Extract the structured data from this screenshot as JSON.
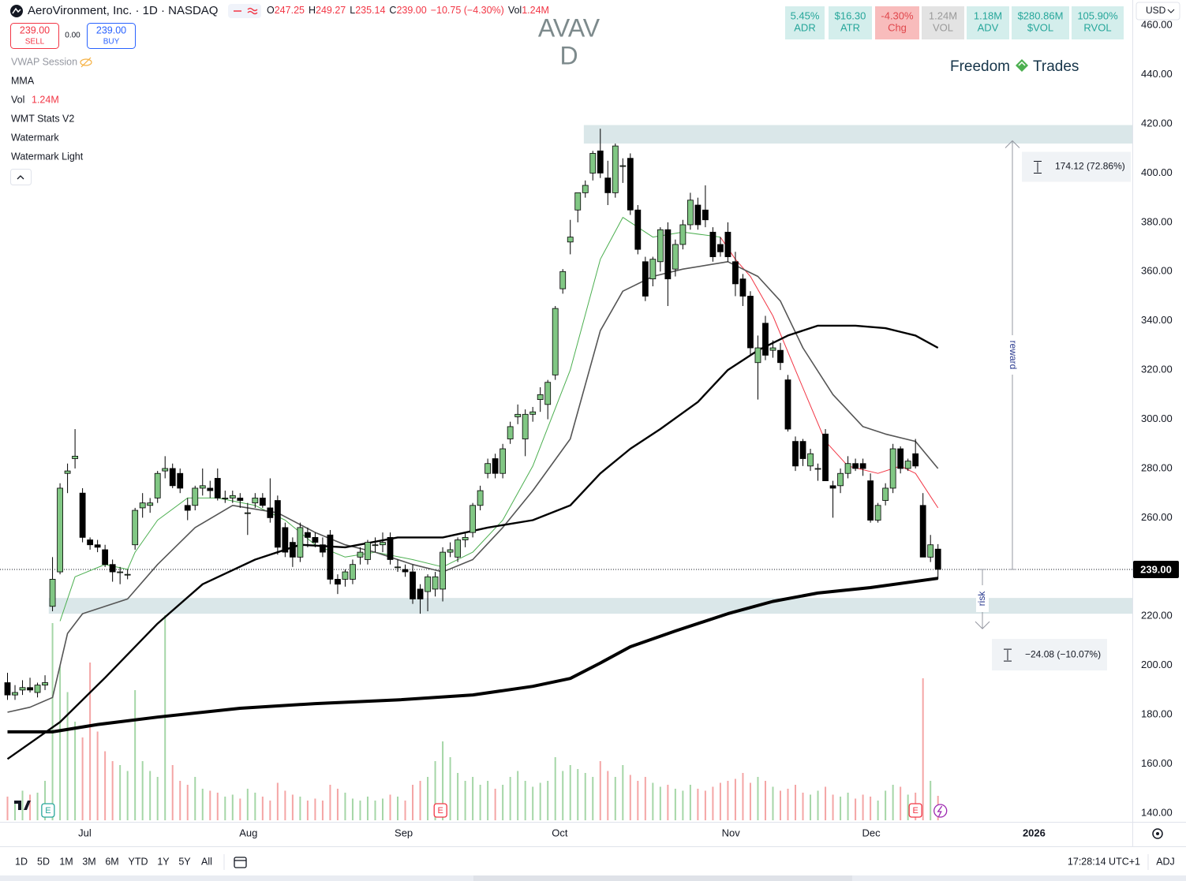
{
  "header": {
    "symbol": "AeroVironment, Inc. · 1D · NASDAQ",
    "ohlc": [
      {
        "key": "O",
        "value": "247.25"
      },
      {
        "key": "H",
        "value": "249.27"
      },
      {
        "key": "L",
        "value": "235.14"
      },
      {
        "key": "C",
        "value": "239.00"
      },
      {
        "key": "",
        "value": "−10.75 (−4.30%)"
      },
      {
        "key": "Vol",
        "value": "1.24M"
      }
    ],
    "sell_price": "239.00",
    "sell": "SELL",
    "spread": "0.00",
    "buy_price": "239.00",
    "buy": "BUY"
  },
  "indicators": [
    "VWAP Session",
    "MMA",
    "Vol",
    "WMT Stats V2",
    "Watermark",
    "Watermark Light"
  ],
  "vol_value": "1.24M",
  "stats": [
    {
      "value": "5.45%",
      "label": "ADR",
      "bg": "#d4eeec",
      "fg": "#26a69a"
    },
    {
      "value": "$16.30",
      "label": "ATR",
      "bg": "#d4eeec",
      "fg": "#26a69a"
    },
    {
      "value": "-4.30%",
      "label": "Chg",
      "bg": "#f8bcbc",
      "fg": "#e0474c"
    },
    {
      "value": "1.24M",
      "label": "VOL",
      "bg": "#e3e3e3",
      "fg": "#9a9a9a"
    },
    {
      "value": "1.18M",
      "label": "ADV",
      "bg": "#d4eeec",
      "fg": "#26a69a"
    },
    {
      "value": "$280.86M",
      "label": "$VOL",
      "bg": "#d4eeec",
      "fg": "#26a69a"
    },
    {
      "value": "105.90%",
      "label": "RVOL",
      "bg": "#d4eeec",
      "fg": "#26a69a"
    }
  ],
  "watermark": {
    "symbol": "AVAV",
    "interval": "D",
    "brand_left": "Freedom",
    "brand_right": "Trades"
  },
  "currency": "USD",
  "toolbar": {
    "ranges": [
      "1D",
      "5D",
      "1M",
      "3M",
      "6M",
      "YTD",
      "1Y",
      "5Y",
      "All"
    ],
    "time": "17:28:14 UTC+1",
    "adj": "ADJ"
  },
  "chart_data": {
    "type": "candlestick",
    "up_color": "#81c784",
    "down_color": "#000000",
    "vol_up_color": "#a5d6a7",
    "vol_down_color": "#f4a5a5",
    "zone_color": "#dae7e9",
    "ylim": [
      137.1,
      468.7
    ],
    "yticks": [
      {
        "value": 140,
        "label": "140.00"
      },
      {
        "value": 160,
        "label": "160.00"
      },
      {
        "value": 180,
        "label": "180.00"
      },
      {
        "value": 200,
        "label": "200.00"
      },
      {
        "value": 220,
        "label": "220.00"
      },
      {
        "value": 240,
        "label": "240.00"
      },
      {
        "value": 260,
        "label": "260.00"
      },
      {
        "value": 280,
        "label": "280.00"
      },
      {
        "value": 300,
        "label": "300.00"
      },
      {
        "value": 320,
        "label": "320.00"
      },
      {
        "value": 340,
        "label": "340.00"
      },
      {
        "value": 360,
        "label": "360.00"
      },
      {
        "value": 380,
        "label": "380.00"
      },
      {
        "value": 400,
        "label": "400.00"
      },
      {
        "value": 420,
        "label": "420.00"
      },
      {
        "value": 440,
        "label": "440.00"
      },
      {
        "value": 460,
        "label": "460.00"
      }
    ],
    "xlim": [
      -1,
      149.9
    ],
    "xticks": [
      {
        "value": 10.3,
        "label": "Jul"
      },
      {
        "value": 32.1,
        "label": "Aug"
      },
      {
        "value": 52.8,
        "label": "Sep"
      },
      {
        "value": 73.6,
        "label": "Oct"
      },
      {
        "value": 96.4,
        "label": "Nov"
      },
      {
        "value": 115.1,
        "label": "Dec"
      },
      {
        "value": 136.8,
        "label": "2026"
      }
    ],
    "grid": false,
    "ohlc": [
      [
        193,
        197,
        186,
        188
      ],
      [
        188,
        192,
        186,
        189
      ],
      [
        190,
        194,
        188,
        191
      ],
      [
        191,
        195,
        189,
        190
      ],
      [
        189,
        193,
        187,
        192
      ],
      [
        192,
        196,
        190,
        193
      ],
      [
        224,
        244,
        222,
        235
      ],
      [
        238,
        274,
        237,
        272
      ],
      [
        278,
        282,
        270,
        279
      ],
      [
        284,
        296,
        280,
        285
      ],
      [
        270,
        272,
        250,
        252
      ],
      [
        251,
        252,
        247,
        249
      ],
      [
        249,
        251,
        246,
        248
      ],
      [
        247,
        249,
        240,
        241
      ],
      [
        241,
        243,
        234,
        238
      ],
      [
        238,
        240,
        233,
        238
      ],
      [
        237,
        239,
        235,
        237
      ],
      [
        249,
        264,
        247,
        263
      ],
      [
        264,
        270,
        260,
        266
      ],
      [
        265,
        268,
        262,
        266
      ],
      [
        268,
        279,
        266,
        278
      ],
      [
        279,
        285,
        276,
        280
      ],
      [
        280,
        282,
        272,
        273
      ],
      [
        278,
        280,
        270,
        272
      ],
      [
        265,
        268,
        259,
        263
      ],
      [
        265,
        273,
        263,
        272
      ],
      [
        272,
        280,
        269,
        273
      ],
      [
        272,
        275,
        268,
        271
      ],
      [
        276,
        280,
        267,
        268
      ],
      [
        268,
        271,
        266,
        268
      ],
      [
        268,
        271,
        266,
        269
      ],
      [
        268,
        270,
        264,
        267
      ],
      [
        262,
        266,
        253,
        262
      ],
      [
        266,
        270,
        264,
        268
      ],
      [
        268,
        270,
        264,
        265
      ],
      [
        264,
        276,
        258,
        260
      ],
      [
        267,
        269,
        245,
        248
      ],
      [
        256,
        258,
        244,
        246
      ],
      [
        250,
        252,
        240,
        244
      ],
      [
        244,
        258,
        242,
        256
      ],
      [
        254,
        256,
        248,
        252
      ],
      [
        252,
        254,
        248,
        250
      ],
      [
        249,
        252,
        244,
        246
      ],
      [
        253,
        255,
        233,
        235
      ],
      [
        235,
        237,
        229,
        233
      ],
      [
        235,
        239,
        232,
        238
      ],
      [
        235,
        243,
        233,
        241
      ],
      [
        244,
        248,
        241,
        246
      ],
      [
        243,
        251,
        241,
        250
      ],
      [
        249,
        252,
        246,
        249
      ],
      [
        249,
        254,
        246,
        250
      ],
      [
        252,
        254,
        241,
        243
      ],
      [
        240,
        243,
        238,
        240
      ],
      [
        239,
        241,
        236,
        238
      ],
      [
        238,
        241,
        225,
        227
      ],
      [
        231,
        233,
        221,
        227
      ],
      [
        230,
        237,
        222,
        236
      ],
      [
        231,
        238,
        228,
        236
      ],
      [
        231,
        248,
        226,
        246
      ],
      [
        246,
        250,
        244,
        247
      ],
      [
        244,
        252,
        242,
        251
      ],
      [
        251,
        254,
        248,
        252
      ],
      [
        254,
        266,
        252,
        265
      ],
      [
        265,
        273,
        263,
        271
      ],
      [
        278,
        284,
        276,
        282
      ],
      [
        284,
        286,
        276,
        278
      ],
      [
        278,
        290,
        276,
        288
      ],
      [
        292,
        299,
        290,
        297
      ],
      [
        301,
        306,
        298,
        302
      ],
      [
        292,
        304,
        285,
        302
      ],
      [
        302,
        305,
        299,
        303
      ],
      [
        308,
        313,
        303,
        310
      ],
      [
        306,
        316,
        300,
        315
      ],
      [
        318,
        346,
        316,
        345
      ],
      [
        353,
        361,
        351,
        360
      ],
      [
        372,
        381,
        367,
        374
      ],
      [
        385,
        392,
        380,
        392
      ],
      [
        392,
        397,
        390,
        395
      ],
      [
        400,
        409,
        397,
        408
      ],
      [
        409,
        418,
        398,
        400
      ],
      [
        398,
        405,
        387,
        392
      ],
      [
        392,
        412,
        390,
        411
      ],
      [
        403,
        406,
        396,
        403
      ],
      [
        406,
        408,
        383,
        385
      ],
      [
        385,
        387,
        367,
        369
      ],
      [
        364,
        366,
        348,
        350
      ],
      [
        357,
        366,
        354,
        365
      ],
      [
        364,
        378,
        360,
        377
      ],
      [
        377,
        380,
        346,
        357
      ],
      [
        361,
        373,
        358,
        371
      ],
      [
        371,
        381,
        369,
        379
      ],
      [
        379,
        392,
        377,
        389
      ],
      [
        387,
        390,
        377,
        379
      ],
      [
        385,
        395,
        378,
        381
      ],
      [
        376,
        378,
        364,
        366
      ],
      [
        371,
        374,
        366,
        368
      ],
      [
        376,
        380,
        364,
        366
      ],
      [
        364,
        368,
        350,
        355
      ],
      [
        357,
        359,
        346,
        350
      ],
      [
        350,
        352,
        326,
        329
      ],
      [
        323,
        334,
        308,
        329
      ],
      [
        339,
        342,
        324,
        326
      ],
      [
        328,
        332,
        325,
        329
      ],
      [
        328,
        331,
        320,
        323
      ],
      [
        316,
        318,
        295,
        296
      ],
      [
        291,
        293,
        279,
        281
      ],
      [
        291,
        292,
        281,
        284
      ],
      [
        281,
        288,
        279,
        286
      ],
      [
        280,
        282,
        275,
        280
      ],
      [
        294,
        296,
        275,
        275
      ],
      [
        273,
        275,
        260,
        272
      ],
      [
        273,
        280,
        270,
        278
      ],
      [
        278,
        285,
        276,
        282
      ],
      [
        282,
        284,
        279,
        280
      ],
      [
        282,
        284,
        277,
        280
      ],
      [
        275,
        278,
        258,
        259
      ],
      [
        259,
        266,
        258,
        265
      ],
      [
        267,
        274,
        265,
        272
      ],
      [
        272,
        290,
        270,
        288
      ],
      [
        288,
        289,
        278,
        280
      ],
      [
        280,
        284,
        279,
        283
      ],
      [
        286,
        292,
        280,
        281
      ],
      [
        265,
        270,
        244,
        244
      ],
      [
        244,
        253,
        242,
        249
      ],
      [
        247.25,
        249.27,
        235.14,
        239
      ]
    ],
    "vol_ylim": [
      0,
      11
    ],
    "volume": [
      1.2,
      1.0,
      1.5,
      1.3,
      1.4,
      2.0,
      10.0,
      7.8,
      6.5,
      5.0,
      4.2,
      8.0,
      4.5,
      3.5,
      3.0,
      2.8,
      2.5,
      6.6,
      3.0,
      2.5,
      2.2,
      10.4,
      2.8,
      2.0,
      1.8,
      2.2,
      1.6,
      1.5,
      1.4,
      1.2,
      1.3,
      1.1,
      1.6,
      1.4,
      1.2,
      1.0,
      1.9,
      1.5,
      1.3,
      1.2,
      1.0,
      1.1,
      1.0,
      1.8,
      1.6,
      1.4,
      1.1,
      1.0,
      1.2,
      1.0,
      1.1,
      1.3,
      1.2,
      1.0,
      1.8,
      2.0,
      2.2,
      3.0,
      4.0,
      3.2,
      2.4,
      2.0,
      2.2,
      1.8,
      2.0,
      1.6,
      1.8,
      2.2,
      2.5,
      2.0,
      1.7,
      1.9,
      2.0,
      3.2,
      2.5,
      2.8,
      2.6,
      2.4,
      2.2,
      3.0,
      2.5,
      2.2,
      2.8,
      2.3,
      2.0,
      2.2,
      1.9,
      1.7,
      1.8,
      1.6,
      1.5,
      1.8,
      1.6,
      1.5,
      1.7,
      1.9,
      2.0,
      2.1,
      2.4,
      1.9,
      2.2,
      2.0,
      1.7,
      1.5,
      1.6,
      1.8,
      1.4,
      1.3,
      1.5,
      1.7,
      1.3,
      1.2,
      1.4,
      1.1,
      1.3,
      1.2,
      1.0,
      1.5,
      1.8,
      1.7,
      1.3,
      1.4,
      7.2,
      2.0,
      1.24
    ],
    "lines": [
      {
        "color": "#4caf50",
        "width": 1,
        "x": [
          7,
          9,
          13,
          16,
          17,
          20,
          24,
          28,
          33,
          37,
          41,
          45,
          49,
          54,
          58,
          62,
          66,
          70,
          75,
          79,
          82,
          86,
          90,
          95
        ],
        "values": [
          218,
          236,
          241,
          239,
          246,
          259,
          268,
          268,
          265,
          259,
          249,
          244,
          246,
          243,
          240,
          246,
          259,
          281,
          320,
          365,
          382,
          374,
          376,
          374
        ]
      },
      {
        "color": "#f23645",
        "width": 1,
        "x": [
          95,
          97,
          99,
          102,
          105,
          109,
          112,
          116,
          119,
          121,
          124
        ],
        "values": [
          374,
          365,
          358,
          342,
          320,
          291,
          281,
          278,
          281,
          278,
          264
        ]
      },
      {
        "color": "#555555",
        "width": 1.6,
        "x": [
          0,
          3,
          6,
          7,
          8,
          10,
          13,
          16,
          20,
          25,
          30,
          36,
          41,
          45,
          49,
          54,
          58,
          62,
          66,
          70,
          75,
          79,
          82,
          86,
          90,
          96,
          100,
          103,
          106,
          110,
          114,
          117,
          121,
          124
        ],
        "values": [
          181,
          183,
          187,
          200,
          213,
          221,
          224,
          227,
          241,
          256,
          265,
          262,
          254,
          249,
          246,
          241,
          238,
          243,
          256,
          271,
          292,
          336,
          352,
          358,
          361,
          364,
          358,
          348,
          329,
          310,
          297,
          294,
          291,
          280
        ]
      },
      {
        "color": "#000000",
        "width": 2.4,
        "x": [
          0,
          7,
          13,
          20,
          26,
          33,
          39,
          45,
          52,
          58,
          64,
          70,
          75,
          79,
          83,
          87,
          92,
          96,
          100,
          104,
          108,
          113,
          117,
          121,
          124
        ],
        "values": [
          162,
          177,
          195,
          217,
          233,
          243,
          249,
          248,
          252,
          252,
          256,
          259,
          265,
          278,
          288,
          296,
          307,
          320,
          328,
          334,
          338,
          338,
          337,
          334,
          329
        ]
      },
      {
        "color": "#000000",
        "width": 4,
        "x": [
          0,
          6,
          12,
          20,
          31,
          41,
          52,
          62,
          70,
          75,
          79,
          83,
          89,
          96,
          102,
          108,
          115,
          124
        ],
        "values": [
          173,
          173,
          176,
          179,
          182.6,
          184.5,
          186,
          188,
          191.5,
          194.7,
          201,
          207.6,
          214,
          221,
          226,
          229.4,
          231.6,
          235.4
        ]
      }
    ],
    "zones": [
      {
        "low": 412,
        "high": 419.5,
        "start": 76.8
      },
      {
        "low": 221,
        "high": 227.4,
        "start": 5.5
      }
    ],
    "last_price": {
      "value": 239,
      "label": "239.00"
    },
    "position": {
      "entry": 239,
      "target": 413.12,
      "stop": 214.92,
      "reward_label": "174.12 (72.86%)",
      "risk_label": "−24.08 (−10.07%)",
      "reward": "reward",
      "risk": "risk"
    },
    "events": [
      {
        "x": 5.4,
        "label": "E",
        "color": "#26a69a"
      },
      {
        "x": 57.7,
        "label": "E",
        "color": "#f23645"
      },
      {
        "x": 121,
        "label": "E",
        "color": "#f23645"
      }
    ]
  }
}
